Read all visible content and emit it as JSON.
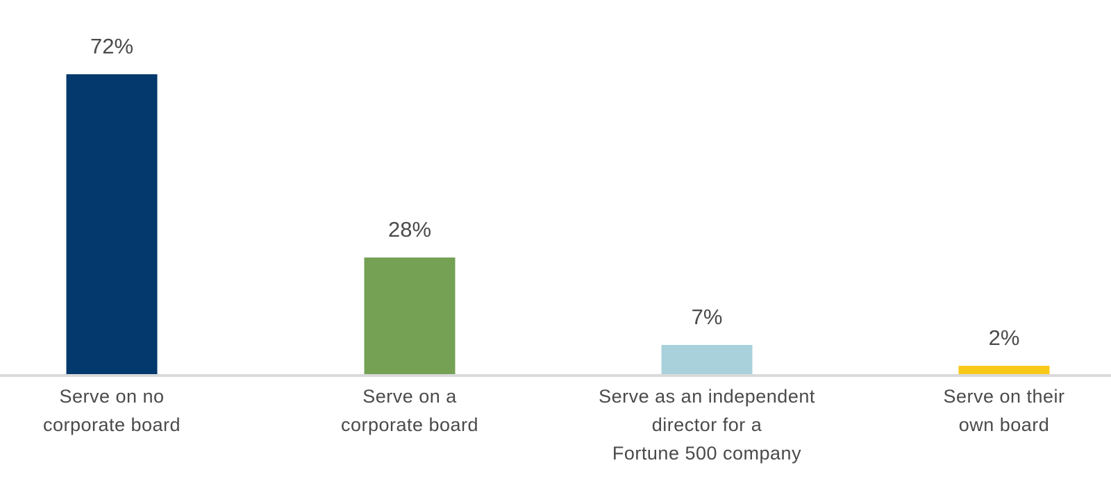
{
  "chart_data": {
    "type": "bar",
    "categories": [
      [
        "Serve on no",
        "corporate board"
      ],
      [
        "Serve on a",
        "corporate board"
      ],
      [
        "Serve as an independent",
        "director for a",
        "Fortune 500 company"
      ],
      [
        "Serve on their",
        "own board"
      ]
    ],
    "values": [
      72,
      28,
      7,
      2
    ],
    "value_labels": [
      "72%",
      "28%",
      "7%",
      "2%"
    ],
    "colors": [
      "#03396c",
      "#74a154",
      "#a8d1db",
      "#f9c918"
    ],
    "axis_color": "#d9d9d9",
    "ylim": [
      0,
      80
    ],
    "grid": false,
    "legend": "none"
  }
}
